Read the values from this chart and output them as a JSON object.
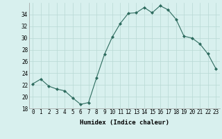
{
  "x": [
    0,
    1,
    2,
    3,
    4,
    5,
    6,
    7,
    8,
    9,
    10,
    11,
    12,
    13,
    14,
    15,
    16,
    17,
    18,
    19,
    20,
    21,
    22,
    23
  ],
  "y": [
    22.2,
    23.0,
    21.8,
    21.3,
    21.0,
    19.8,
    18.7,
    19.0,
    23.2,
    27.2,
    30.2,
    32.5,
    34.2,
    34.3,
    35.2,
    34.3,
    35.5,
    34.8,
    33.2,
    30.3,
    30.0,
    29.0,
    27.3,
    24.8
  ],
  "line_color": "#2d6b5e",
  "marker": "D",
  "marker_size": 2,
  "bg_color": "#d8f0ee",
  "grid_color": "#b8d8d4",
  "xlabel": "Humidex (Indice chaleur)",
  "ylim": [
    18,
    36
  ],
  "xlim": [
    -0.5,
    23.5
  ],
  "yticks": [
    18,
    20,
    22,
    24,
    26,
    28,
    30,
    32,
    34
  ],
  "xticks": [
    0,
    1,
    2,
    3,
    4,
    5,
    6,
    7,
    8,
    9,
    10,
    11,
    12,
    13,
    14,
    15,
    16,
    17,
    18,
    19,
    20,
    21,
    22,
    23
  ],
  "label_fontsize": 6.5,
  "tick_fontsize": 5.5
}
